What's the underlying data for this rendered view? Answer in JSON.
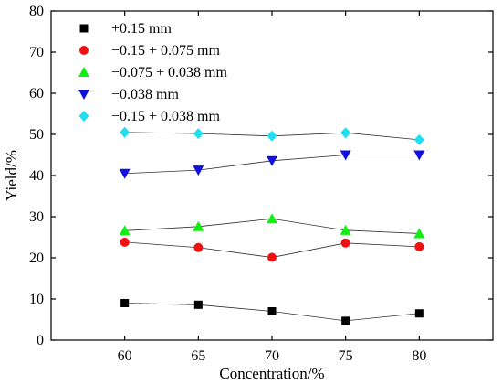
{
  "chart_data": {
    "type": "line",
    "xlabel": "Concentration/%",
    "ylabel": "Yield/%",
    "x": [
      60,
      65,
      70,
      75,
      80
    ],
    "xlim": [
      55,
      85
    ],
    "ylim": [
      0,
      80
    ],
    "x_ticks": [
      "60",
      "65",
      "70",
      "75",
      "80"
    ],
    "y_ticks": [
      "0",
      "10",
      "20",
      "30",
      "40",
      "50",
      "60",
      "70",
      "80"
    ],
    "grid": false,
    "legend_position": "top-left",
    "series": [
      {
        "name": "+0.15 mm",
        "marker": "square",
        "color": "#000000",
        "values": [
          9.0,
          8.6,
          7.0,
          4.7,
          6.5
        ]
      },
      {
        "name": "−0.15 + 0.075 mm",
        "marker": "circle",
        "color": "#ee1111",
        "values": [
          23.8,
          22.5,
          20.1,
          23.6,
          22.7
        ]
      },
      {
        "name": "−0.075 + 0.038 mm",
        "marker": "triangle-up",
        "color": "#11ee11",
        "values": [
          26.6,
          27.6,
          29.5,
          26.7,
          25.9
        ]
      },
      {
        "name": "−0.038 mm",
        "marker": "triangle-down",
        "color": "#1111dd",
        "values": [
          40.5,
          41.3,
          43.6,
          45.0,
          45.0
        ]
      },
      {
        "name": "−0.15 + 0.038 mm",
        "marker": "diamond",
        "color": "#22ddee",
        "values": [
          50.5,
          50.2,
          49.6,
          50.4,
          48.7
        ]
      }
    ]
  }
}
